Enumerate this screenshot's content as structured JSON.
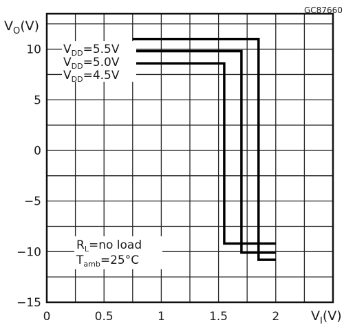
{
  "chart_data": {
    "type": "line",
    "figure_code": "GC87660",
    "ylabel": {
      "main": "V",
      "sub": "O",
      "unit": "(V)"
    },
    "xlabel": {
      "main": "V",
      "sub": "I",
      "unit": "(V)"
    },
    "xlim": [
      0,
      2.5
    ],
    "ylim": [
      -15,
      13.5
    ],
    "x_ticks": [
      0,
      0.5,
      1,
      1.5,
      2
    ],
    "x_tick_labels": [
      "0",
      "0.5",
      "1",
      "1.5",
      "2"
    ],
    "y_ticks": [
      -15,
      -10,
      -5,
      0,
      5,
      10
    ],
    "y_tick_labels": [
      "−15",
      "−10",
      "−5",
      "0",
      "5",
      "10"
    ],
    "grid": true,
    "series": [
      {
        "name": "V_DD = 5.5V",
        "label_main": "V",
        "label_sub": "DD",
        "label_rest": "=5.5V",
        "x": [
          0.75,
          1.85,
          1.85,
          2.0
        ],
        "y": [
          11,
          11,
          -10.8,
          -10.8
        ]
      },
      {
        "name": "V_DD = 5.0V",
        "label_main": "V",
        "label_sub": "DD",
        "label_rest": "=5.0V",
        "x": [
          0.75,
          1.7,
          1.7,
          2.0
        ],
        "y": [
          9.8,
          9.8,
          -10.1,
          -10.1
        ]
      },
      {
        "name": "V_DD = 4.5V",
        "label_main": "V",
        "label_sub": "DD",
        "label_rest": "=4.5V",
        "x": [
          0.75,
          1.55,
          1.55,
          2.0
        ],
        "y": [
          8.6,
          8.6,
          -9.2,
          -9.2
        ]
      }
    ],
    "annotations": [
      {
        "main": "R",
        "sub": "L",
        "rest": "=no load"
      },
      {
        "main": "T",
        "sub": "amb",
        "rest": "=25°C"
      }
    ]
  }
}
